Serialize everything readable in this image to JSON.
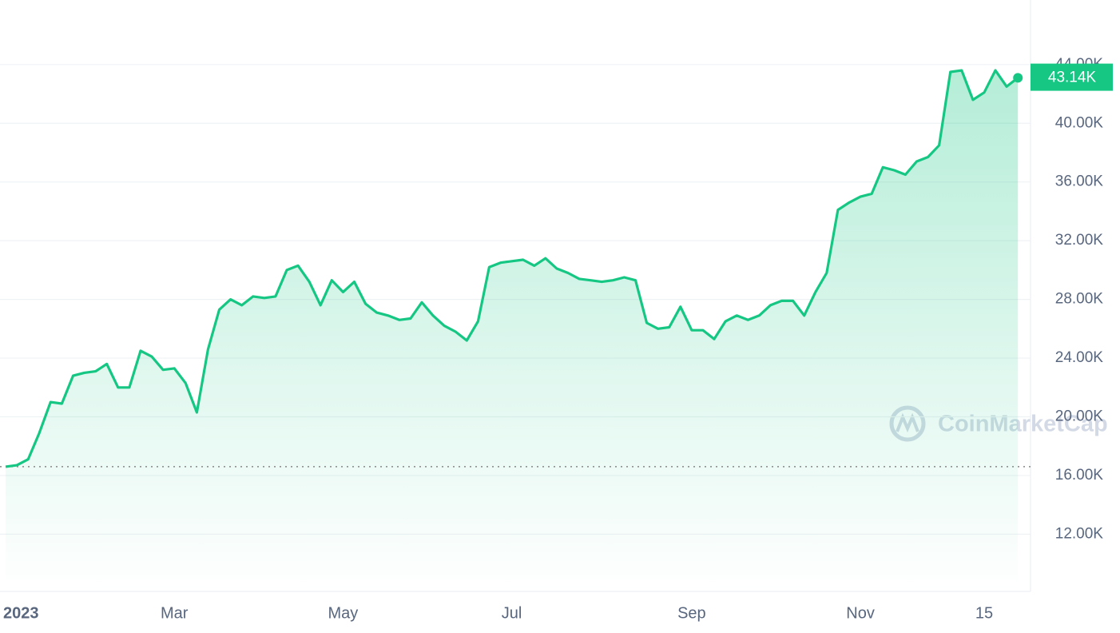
{
  "chart_data": {
    "type": "line",
    "watermark": "CoinMarketCap",
    "color": "#16c784",
    "categories": [
      "2023",
      null,
      null,
      null,
      null,
      null,
      null,
      null,
      null,
      null,
      null,
      null,
      null,
      null,
      null,
      "Mar",
      null,
      null,
      null,
      null,
      null,
      null,
      null,
      null,
      null,
      null,
      null,
      null,
      null,
      null,
      "May",
      null,
      null,
      null,
      null,
      null,
      null,
      null,
      null,
      null,
      null,
      null,
      null,
      null,
      null,
      "Jul",
      null,
      null,
      null,
      null,
      null,
      null,
      null,
      null,
      null,
      null,
      null,
      null,
      null,
      null,
      null,
      "Sep",
      null,
      null,
      null,
      null,
      null,
      null,
      null,
      null,
      null,
      null,
      null,
      null,
      null,
      null,
      "Nov",
      null,
      null,
      null,
      null,
      null,
      null,
      null,
      null,
      null,
      null,
      "15",
      null,
      null,
      null
    ],
    "values": [
      16600,
      16700,
      17100,
      18900,
      21000,
      20900,
      22800,
      23000,
      23100,
      23600,
      22000,
      22000,
      24500,
      24100,
      23200,
      23300,
      22300,
      20300,
      24600,
      27300,
      28000,
      27600,
      28200,
      28100,
      28200,
      30000,
      30300,
      29200,
      27600,
      29300,
      28500,
      29200,
      27700,
      27100,
      26900,
      26600,
      26700,
      27800,
      26900,
      26200,
      25800,
      25200,
      26500,
      30200,
      30500,
      30600,
      30700,
      30300,
      30800,
      30100,
      29800,
      29400,
      29300,
      29200,
      29300,
      29500,
      29300,
      26400,
      26000,
      26100,
      27500,
      25900,
      25900,
      25300,
      26500,
      26900,
      26600,
      26900,
      27600,
      27900,
      27900,
      26900,
      28500,
      29800,
      34100,
      34600,
      35000,
      35200,
      37000,
      36800,
      36500,
      37400,
      37700,
      38500,
      43500,
      43600,
      41600,
      42100,
      43600,
      42500,
      43100
    ],
    "price_tag": {
      "value": 43140,
      "label": "43.14K"
    },
    "ylim": [
      8100,
      48400
    ],
    "yticks": [
      {
        "value": 12000,
        "label": "12.00K"
      },
      {
        "value": 16000,
        "label": "16.00K"
      },
      {
        "value": 20000,
        "label": "20.00K"
      },
      {
        "value": 24000,
        "label": "24.00K"
      },
      {
        "value": 28000,
        "label": "28.00K"
      },
      {
        "value": 32000,
        "label": "32.00K"
      },
      {
        "value": 36000,
        "label": "36.00K"
      },
      {
        "value": 40000,
        "label": "40.00K"
      },
      {
        "value": 44000,
        "label": "44.00K"
      }
    ],
    "grid": true
  }
}
